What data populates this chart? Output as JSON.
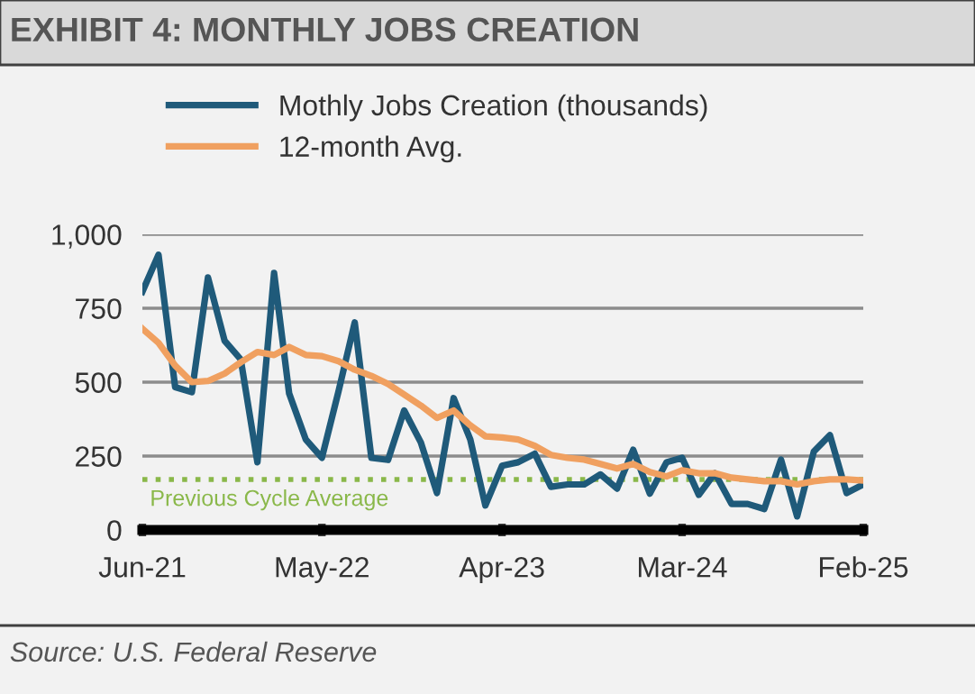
{
  "chart_data": {
    "type": "line",
    "title": "EXHIBIT 4: MONTHLY JOBS CREATION",
    "x": [
      "2021-06",
      "2021-07",
      "2021-08",
      "2021-09",
      "2021-10",
      "2021-11",
      "2021-12",
      "2022-01",
      "2022-02",
      "2022-03",
      "2022-04",
      "2022-05",
      "2022-06",
      "2022-07",
      "2022-08",
      "2022-09",
      "2022-10",
      "2022-11",
      "2022-12",
      "2023-01",
      "2023-02",
      "2023-03",
      "2023-04",
      "2023-05",
      "2023-06",
      "2023-07",
      "2023-08",
      "2023-09",
      "2023-10",
      "2023-11",
      "2023-12",
      "2024-01",
      "2024-02",
      "2024-03",
      "2024-04",
      "2024-05",
      "2024-06",
      "2024-07",
      "2024-08",
      "2024-09",
      "2024-10",
      "2024-11",
      "2024-12",
      "2025-01",
      "2025-02"
    ],
    "series": [
      {
        "name": "Mothly Jobs Creation (thousands)",
        "color": "#1f5a7a",
        "values": [
          806,
          931,
          483,
          466,
          854,
          640,
          577,
          229,
          869,
          462,
          306,
          244,
          470,
          702,
          244,
          237,
          404,
          296,
          125,
          446,
          306,
          83,
          217,
          229,
          258,
          146,
          154,
          154,
          188,
          140,
          271,
          123,
          229,
          244,
          119,
          192,
          88,
          88,
          71,
          238,
          46,
          265,
          321,
          125,
          154
        ]
      },
      {
        "name": "12-month Avg.",
        "color": "#f0a060",
        "values": [
          681,
          633,
          556,
          500,
          504,
          529,
          567,
          602,
          592,
          619,
          592,
          588,
          571,
          542,
          521,
          494,
          458,
          421,
          379,
          404,
          354,
          317,
          313,
          306,
          285,
          254,
          244,
          238,
          223,
          208,
          223,
          196,
          181,
          202,
          192,
          192,
          177,
          171,
          165,
          165,
          154,
          165,
          171,
          171,
          167
        ]
      }
    ],
    "xlim": [
      "2021-06",
      "2025-02"
    ],
    "xticks": [
      {
        "value": "2021-06",
        "label": "Jun-21"
      },
      {
        "value": "2022-05",
        "label": "May-22"
      },
      {
        "value": "2023-04",
        "label": "Apr-23"
      },
      {
        "value": "2024-03",
        "label": "Mar-24"
      },
      {
        "value": "2025-02",
        "label": "Feb-25"
      }
    ],
    "ylim": [
      0,
      1000
    ],
    "yticks": [
      0,
      250,
      500,
      750,
      {
        "value": 1000,
        "label": "1,000"
      }
    ],
    "grid": "y",
    "legend": "top",
    "marker": "none",
    "line_style": "solid",
    "ref_lines": [
      {
        "axis": "y",
        "value": 171,
        "label": "Previous Cycle Average",
        "color": "#8ab84a",
        "line_style": "dotted"
      }
    ],
    "annotations": [
      "Source: U.S. Federal Reserve"
    ]
  }
}
